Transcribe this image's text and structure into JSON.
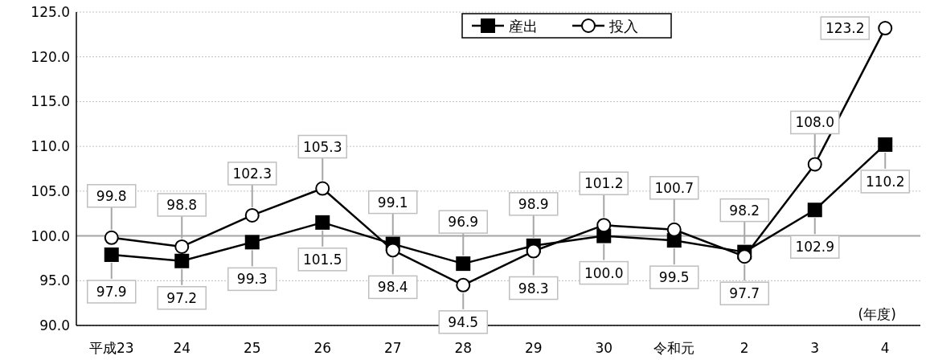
{
  "chart_data": {
    "type": "line",
    "categories": [
      "平成23",
      "24",
      "25",
      "26",
      "27",
      "28",
      "29",
      "30",
      "令和元",
      "2",
      "3",
      "4"
    ],
    "series": [
      {
        "name": "産出",
        "color": "#000000",
        "marker": "square",
        "values": [
          97.9,
          97.2,
          99.3,
          101.5,
          99.1,
          96.9,
          98.9,
          100.0,
          99.5,
          98.2,
          102.9,
          110.2
        ],
        "value_labels": [
          "97.9",
          "97.2",
          "99.3",
          "101.5",
          "99.1",
          "96.9",
          "98.9",
          "100.0",
          "99.5",
          "98.2",
          "102.9",
          "110.2"
        ]
      },
      {
        "name": "投入",
        "color": "#000000",
        "marker": "circle",
        "values": [
          99.8,
          98.8,
          102.3,
          105.3,
          98.4,
          94.5,
          98.3,
          101.2,
          100.7,
          97.7,
          108.0,
          123.2
        ],
        "value_labels": [
          "99.8",
          "98.8",
          "102.3",
          "105.3",
          "98.4",
          "94.5",
          "98.3",
          "101.2",
          "100.7",
          "97.7",
          "108.0",
          "123.2"
        ]
      }
    ],
    "ylim": [
      90,
      125
    ],
    "yticks": [
      {
        "value": 90,
        "label": "90.0"
      },
      {
        "value": 95,
        "label": "95.0"
      },
      {
        "value": 100,
        "label": "100.0"
      },
      {
        "value": 105,
        "label": "105.0"
      },
      {
        "value": 110,
        "label": "110.0"
      },
      {
        "value": 115,
        "label": "115.0"
      },
      {
        "value": 120,
        "label": "120.0"
      },
      {
        "value": 125,
        "label": "125.0"
      }
    ],
    "grid": "y",
    "ref_lines": [
      {
        "axis": "y",
        "value": 100,
        "color": "#a6a6a6"
      }
    ],
    "legend": "top",
    "line_style": "solid",
    "annotations": [
      "(年度)"
    ]
  }
}
